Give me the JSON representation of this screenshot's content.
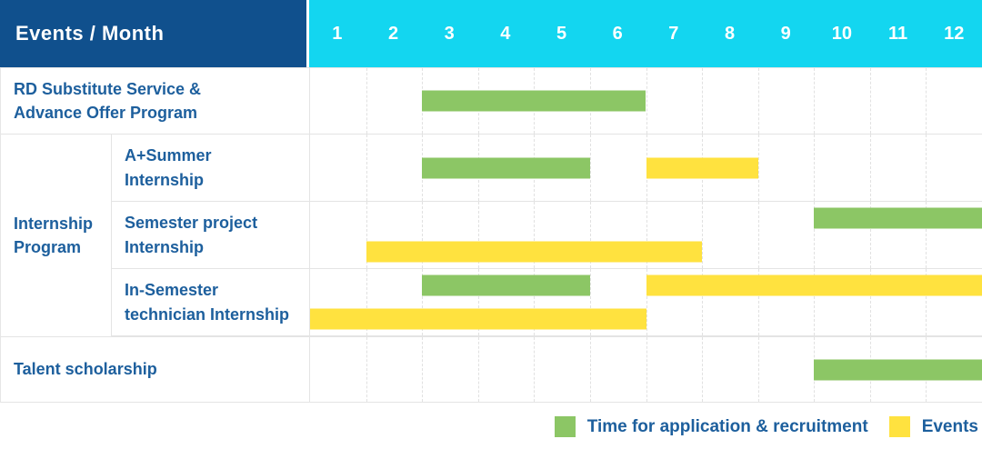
{
  "header": {
    "title": "Events / Month",
    "months": [
      "1",
      "2",
      "3",
      "4",
      "5",
      "6",
      "7",
      "8",
      "9",
      "10",
      "11",
      "12"
    ]
  },
  "colors": {
    "header_bg": "#10508d",
    "months_bg": "#13d6f0",
    "label_text": "#1d5f9d",
    "green": "#8cc665",
    "yellow": "#ffe23f"
  },
  "group": {
    "label": "Internship\nProgram"
  },
  "rows": [
    {
      "label": "RD Substitute Service &\nAdvance Offer Program",
      "lanes": [
        [
          {
            "color": "green",
            "start": 3,
            "end": 6
          }
        ]
      ]
    },
    {
      "label": "A+Summer\nInternship",
      "lanes": [
        [
          {
            "color": "green",
            "start": 3,
            "end": 5
          },
          {
            "color": "yellow",
            "start": 7,
            "end": 8
          }
        ]
      ]
    },
    {
      "label": "Semester project\nInternship",
      "lanes": [
        [
          {
            "color": "green",
            "start": 10,
            "end": 12
          }
        ],
        [
          {
            "color": "yellow",
            "start": 2,
            "end": 7
          }
        ]
      ]
    },
    {
      "label": "In-Semester\ntechnician Internship",
      "lanes": [
        [
          {
            "color": "green",
            "start": 3,
            "end": 5
          },
          {
            "color": "yellow",
            "start": 7,
            "end": 12
          }
        ],
        [
          {
            "color": "yellow",
            "start": 1,
            "end": 6
          }
        ]
      ]
    },
    {
      "label": "Talent scholarship",
      "lanes": [
        [
          {
            "color": "green",
            "start": 10,
            "end": 12
          }
        ]
      ]
    }
  ],
  "legend": [
    {
      "color": "green",
      "label": "Time for application & recruitment"
    },
    {
      "color": "yellow",
      "label": "Events"
    }
  ],
  "chart_data": {
    "type": "table",
    "title": "Events / Month",
    "x": [
      1,
      2,
      3,
      4,
      5,
      6,
      7,
      8,
      9,
      10,
      11,
      12
    ],
    "series": [
      {
        "name": "RD Substitute Service & Advance Offer Program",
        "application_recruitment_months": [
          3,
          6
        ],
        "event_months": null
      },
      {
        "name": "Internship Program / A+Summer Internship",
        "application_recruitment_months": [
          3,
          5
        ],
        "event_months": [
          7,
          8
        ]
      },
      {
        "name": "Internship Program / Semester project Internship",
        "application_recruitment_months": [
          10,
          12
        ],
        "event_months": [
          2,
          7
        ]
      },
      {
        "name": "Internship Program / In-Semester technician Internship",
        "application_recruitment_months": [
          3,
          5
        ],
        "event_months": [
          [
            7,
            12
          ],
          [
            1,
            6
          ]
        ]
      },
      {
        "name": "Talent scholarship",
        "application_recruitment_months": [
          10,
          12
        ],
        "event_months": null
      }
    ],
    "legend_position": "bottom-right",
    "grid": "dashed vertical month separators, solid row separators"
  }
}
